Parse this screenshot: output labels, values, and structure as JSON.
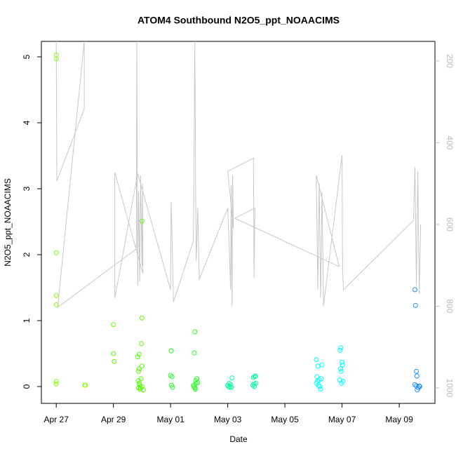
{
  "chart_data": {
    "type": "scatter",
    "title": "ATOM4 Southbound N2O5_ppt_NOAACIMS",
    "x_label": "Date",
    "y_label": "N2O5_ppt_NOAACIMS",
    "xlim": [
      -0.52,
      13.25
    ],
    "xticks": [
      {
        "value": 0,
        "label": "Apr 27"
      },
      {
        "value": 2,
        "label": "Apr 29"
      },
      {
        "value": 4,
        "label": "May 01"
      },
      {
        "value": 6,
        "label": "May 03"
      },
      {
        "value": 8,
        "label": "May 05"
      },
      {
        "value": 10,
        "label": "May 07"
      },
      {
        "value": 12,
        "label": "May 09"
      }
    ],
    "ylim": [
      -0.255,
      5.234
    ],
    "yticks": [
      0,
      1,
      2,
      3,
      4,
      5
    ],
    "y2lim": [
      1038,
      152
    ],
    "y2ticks": [
      200,
      400,
      600,
      800,
      1000
    ],
    "series": [
      {
        "type": "line",
        "axis": "y2",
        "color": "#c8c8c8",
        "x": [
          0.0,
          0.02,
          0.98,
          0.98,
          0.05,
          2.8,
          2.82,
          2.85,
          2.88,
          2.92,
          2.95,
          3.0,
          3.02,
          3.03,
          2.05,
          2.05,
          2.85,
          4.0,
          4.02,
          4.05,
          4.1,
          4.8,
          4.85,
          4.88,
          4.9,
          4.95,
          5.0,
          5.0,
          6.0,
          6.05,
          6.1,
          6.12,
          6.15,
          6.17,
          6.2,
          6.0,
          6.9,
          6.92,
          6.95,
          6.25,
          9.9,
          9.1,
          9.15,
          9.2,
          9.25,
          9.3,
          9.35,
          10.0,
          10.02,
          10.05,
          12.5,
          12.55,
          12.6,
          12.65,
          12.7,
          12.75
        ],
        "values": [
          152,
          494,
          317,
          152,
          803,
          660,
          152,
          750,
          520,
          740,
          480,
          700,
          500,
          720,
          473,
          780,
          475,
          760,
          545,
          620,
          790,
          640,
          152,
          540,
          690,
          560,
          720,
          735,
          560,
          650,
          760,
          505,
          800,
          480,
          610,
          470,
          438,
          730,
          560,
          585,
          703,
          480,
          760,
          500,
          780,
          520,
          800,
          430,
          720,
          760,
          590,
          460,
          750,
          470,
          770,
          600
        ]
      },
      {
        "type": "scatter",
        "color": "#80ff00",
        "x": [
          0,
          0,
          0,
          0,
          0,
          0,
          0,
          1,
          1.02
        ],
        "values": [
          5.03,
          4.97,
          2.03,
          1.38,
          1.24,
          0.08,
          0.04,
          0.02,
          0.02
        ]
      },
      {
        "type": "scatter",
        "color": "#55ff00",
        "x": [
          2.0,
          2.0,
          2.03,
          2.85,
          2.88,
          2.9,
          2.87,
          2.9,
          2.92,
          2.88,
          2.93,
          2.9,
          3.0,
          3.0,
          2.98,
          3.0,
          2.97,
          3.0,
          2.95,
          3.05
        ],
        "values": [
          0.94,
          0.5,
          0.38,
          0.45,
          0.23,
          0.27,
          0.09,
          0.05,
          0.02,
          -0.02,
          -0.04,
          0.49,
          2.51,
          1.04,
          0.65,
          0.31,
          0.12,
          0.0,
          -0.02,
          -0.05
        ]
      },
      {
        "type": "scatter",
        "color": "#22ff22",
        "x": [
          4.02,
          4.0,
          4.05,
          4.03,
          4.07,
          4.85,
          4.83,
          4.8,
          4.82,
          4.85,
          4.87,
          4.9,
          4.92,
          4.88,
          4.95
        ],
        "values": [
          0.54,
          0.17,
          0.15,
          0.02,
          -0.01,
          0.83,
          0.51,
          0.02,
          0.0,
          -0.02,
          -0.04,
          0.05,
          0.12,
          0.09,
          0.06
        ]
      },
      {
        "type": "scatter",
        "color": "#00ff99",
        "x": [
          6.0,
          6.03,
          6.07,
          6.1,
          6.05,
          6.15,
          6.12,
          6.9,
          6.95,
          6.92,
          6.88,
          6.93,
          6.97,
          6.99
        ],
        "values": [
          0.02,
          0.0,
          -0.01,
          0.03,
          0.05,
          0.13,
          -0.01,
          0.14,
          0.15,
          0.04,
          0.02,
          0.0,
          0.16,
          0.05
        ]
      },
      {
        "type": "scatter",
        "color": "#00ffff",
        "x": [
          9.1,
          9.15,
          9.12,
          9.2,
          9.1,
          9.18,
          9.22,
          9.25,
          9.3,
          9.27,
          9.14,
          9.95,
          9.93,
          10.0,
          10.02,
          9.97,
          9.95,
          9.92,
          10.03,
          9.98
        ],
        "values": [
          0.41,
          0.31,
          0.15,
          0.1,
          0.05,
          0.02,
          0.0,
          -0.04,
          0.33,
          0.12,
          0.08,
          0.59,
          0.55,
          0.37,
          0.33,
          0.23,
          0.27,
          0.1,
          0.08,
          0.05
        ]
      },
      {
        "type": "scatter",
        "color": "#1e90ff",
        "x": [
          12.55,
          12.57,
          12.6,
          12.62,
          12.55,
          12.6,
          12.63,
          12.7,
          12.72,
          12.67
        ],
        "values": [
          1.47,
          1.23,
          0.23,
          0.16,
          0.03,
          0.01,
          -0.05,
          0.01,
          0.0,
          -0.02
        ]
      }
    ]
  }
}
